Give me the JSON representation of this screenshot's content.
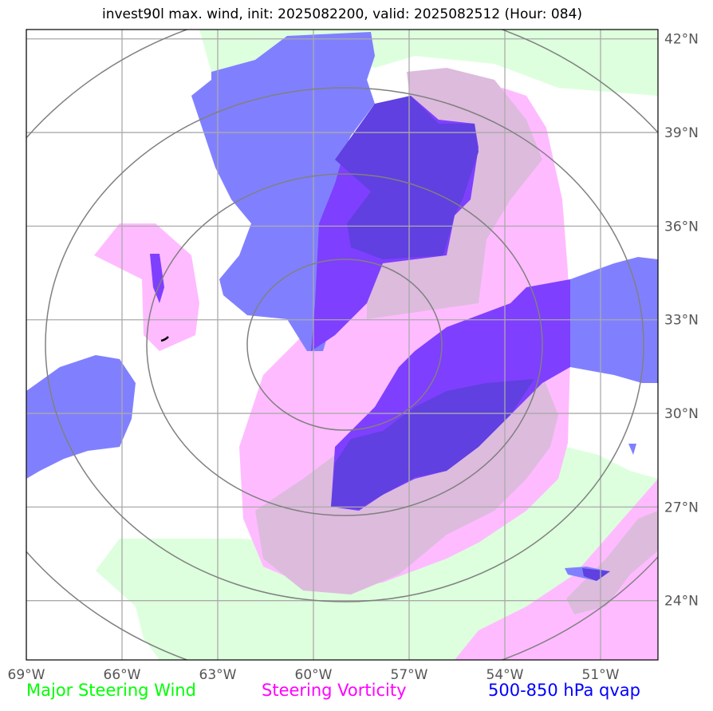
{
  "title": "invest90l max. wind, init: 2025082200, valid: 2025082512 (Hour: 084)",
  "map": {
    "lon_range": [
      -69.0,
      -49.2
    ],
    "lat_range": [
      22.1,
      42.3
    ],
    "lon_ticks": [
      -69,
      -66,
      -63,
      -60,
      -57,
      -54,
      -51
    ],
    "lat_ticks": [
      24,
      27,
      30,
      33,
      36,
      39,
      42
    ],
    "lon_tick_labels": [
      "69°W",
      "66°W",
      "63°W",
      "60°W",
      "57°W",
      "54°W",
      "51°W"
    ],
    "lat_tick_labels": [
      "24°N",
      "27°N",
      "30°N",
      "33°N",
      "36°N",
      "39°N",
      "42°N"
    ],
    "grid": true,
    "range_rings_center": {
      "lon": -59.0,
      "lat": 31.9
    },
    "colors": {
      "steering_wind": "#ddffdd",
      "steering_vorticity": "#ffbbff",
      "vorticity_overlap": "#ddbbdd",
      "qvap": "#8080ff",
      "qvap_strong": "#7f3fff",
      "qvap_overlap": "#6040e0"
    }
  },
  "legend": {
    "wind": {
      "label": "Major Steering Wind",
      "color": "#00ff00"
    },
    "vorticity": {
      "label": "Steering Vorticity",
      "color": "#ff00ff"
    },
    "qvap": {
      "label": "500-850 hPa qvap",
      "color": "#0000ff"
    }
  }
}
